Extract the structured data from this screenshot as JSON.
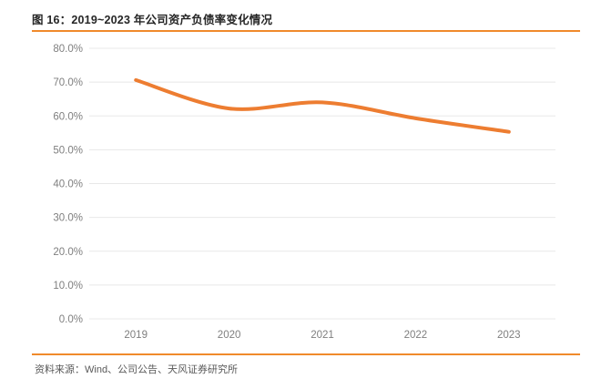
{
  "header": {
    "title": "图 16：2019~2023 年公司资产负债率变化情况",
    "rule_color": "#F08A2B"
  },
  "footer": {
    "source_label": "资料来源：Wind、公司公告、天风证券研究所"
  },
  "chart_data": {
    "type": "line",
    "title": "2019~2023 年公司资产负债率变化情况",
    "categories": [
      "2019",
      "2020",
      "2021",
      "2022",
      "2023"
    ],
    "series": [
      {
        "name": "资产负债率",
        "values": [
          70.6,
          62.2,
          64.0,
          59.3,
          55.3
        ],
        "color": "#ED7D31",
        "smooth": true,
        "line_width": 4
      }
    ],
    "xlabel": "",
    "ylabel": "",
    "ylim": [
      0,
      80
    ],
    "ytick_step": 10,
    "ytick_labels": [
      "0.0%",
      "10.0%",
      "20.0%",
      "30.0%",
      "40.0%",
      "50.0%",
      "60.0%",
      "70.0%",
      "80.0%"
    ],
    "grid": "horizontal",
    "gridline_color": "#E8E8E8",
    "tick_label_color": "#7F7F7F",
    "legend_position": "none"
  }
}
